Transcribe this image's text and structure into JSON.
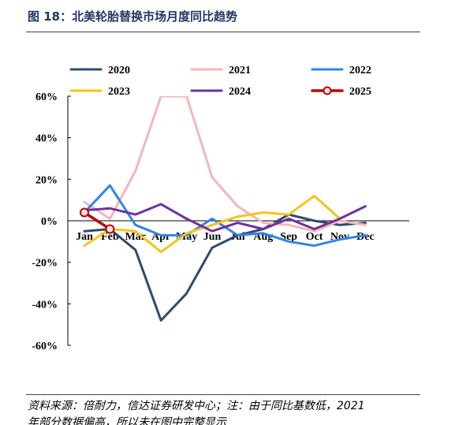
{
  "figure": {
    "title": "图 18：北美轮胎替换市场月度同比趋势",
    "source_lines": [
      "资料来源：倍耐力，信达证券研发中心；注：由于同比基数低，2021",
      "年部分数据偏高，所以未在图中完整显示"
    ]
  },
  "chart_data": {
    "type": "line",
    "title": "",
    "xlabel": "",
    "ylabel": "",
    "categories": [
      "Jan",
      "Feb",
      "Mar",
      "Apr",
      "May",
      "Jun",
      "Jul",
      "Aug",
      "Sep",
      "Oct",
      "Nov",
      "Dec"
    ],
    "ylim": [
      -60,
      60
    ],
    "yticks": [
      60,
      40,
      20,
      0,
      -20,
      -40,
      -60
    ],
    "ytick_labels": [
      "60%",
      "40%",
      "20%",
      "0%",
      "-20%",
      "-40%",
      "-60%"
    ],
    "grid": false,
    "legend_position": "top",
    "series": [
      {
        "name": "2020",
        "color": "#2e4a6e",
        "values": [
          -5,
          -4,
          -14,
          -48,
          -35,
          -13,
          -7,
          -4,
          3,
          0,
          -2,
          -1
        ]
      },
      {
        "name": "2021",
        "color": "#f4b6b8",
        "values": [
          9,
          1,
          24,
          60,
          60,
          21,
          7,
          -1,
          -2,
          -5,
          0,
          -2
        ]
      },
      {
        "name": "2022",
        "color": "#2f85e9",
        "values": [
          4,
          17,
          -2,
          -7,
          -7,
          1,
          -7,
          -6,
          -10,
          -12,
          -9,
          -7
        ]
      },
      {
        "name": "2023",
        "color": "#f5c518",
        "values": [
          -12,
          -4,
          -5,
          -15,
          -6,
          -2,
          2,
          4,
          3,
          12,
          1,
          null
        ]
      },
      {
        "name": "2024",
        "color": "#7030a0",
        "values": [
          5,
          6,
          3,
          8,
          1,
          -5,
          -1,
          -4,
          1,
          -4,
          1,
          7
        ]
      },
      {
        "name": "2025",
        "color": "#c00000",
        "values": [
          4,
          -4,
          null,
          null,
          null,
          null,
          null,
          null,
          null,
          null,
          null,
          null
        ],
        "markers": true
      }
    ]
  }
}
